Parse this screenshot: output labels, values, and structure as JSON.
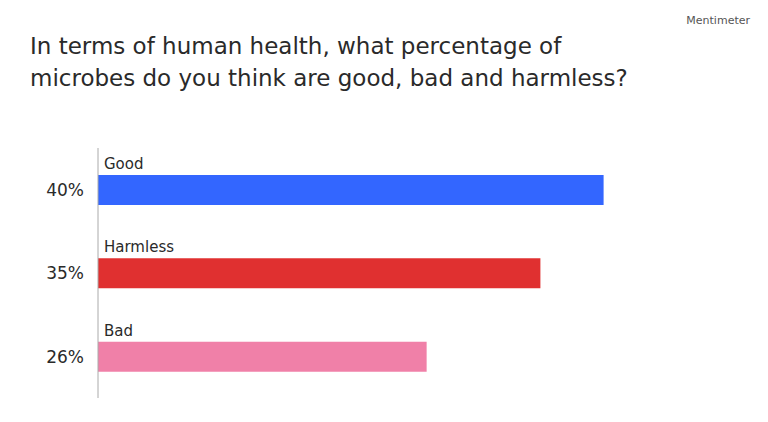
{
  "chart_data": {
    "type": "bar",
    "title": "In terms of human health, what percentage of microbes do you think are good, bad and harmless?",
    "annotations": [
      "Mentimeter"
    ],
    "orientation": "horizontal",
    "categories": [
      "Good",
      "Harmless",
      "Bad"
    ],
    "values": [
      40,
      35,
      26
    ],
    "value_labels": [
      "40%",
      "35%",
      "26%"
    ],
    "data_labels": true,
    "colors": [
      "#3366ff",
      "#e03030",
      "#f080a8"
    ],
    "xlim": [
      0,
      50
    ],
    "tick_labels": false,
    "grid": false
  }
}
